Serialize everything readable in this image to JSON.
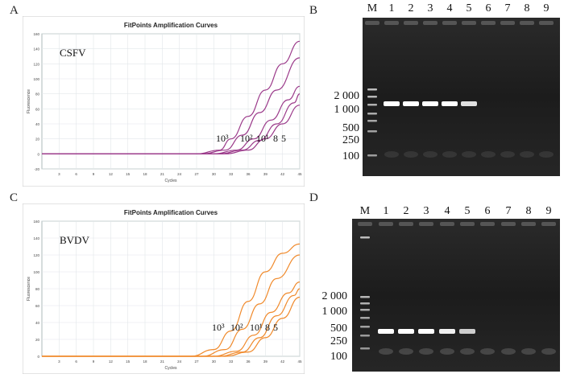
{
  "panels": {
    "A": {
      "letter": "A"
    },
    "B": {
      "letter": "B"
    },
    "C": {
      "letter": "C"
    },
    "D": {
      "letter": "D"
    }
  },
  "chart_data": [
    {
      "type": "line",
      "title": "FitPoints Amplification Curves",
      "xlabel": "Cycles",
      "ylabel": "Fluorescence",
      "virus_label": "CSFV",
      "color": "#9b3a8a",
      "x_ticks": [
        "3",
        "6",
        "9",
        "12",
        "15",
        "18",
        "21",
        "24",
        "27",
        "30",
        "33",
        "36",
        "39",
        "42",
        "45"
      ],
      "y_ticks": [
        "-20",
        "0",
        "20",
        "40",
        "60",
        "80",
        "100",
        "120",
        "140",
        "160"
      ],
      "xlim": [
        0,
        45
      ],
      "ylim": [
        -20,
        160
      ],
      "curve_labels": [
        "10³",
        "10²",
        "10¹",
        "8",
        "5"
      ],
      "series": [
        {
          "values_x": [
            0,
            27,
            31,
            33,
            36,
            39,
            42,
            45
          ],
          "values_y": [
            0,
            0,
            5,
            20,
            50,
            85,
            120,
            150
          ]
        },
        {
          "values_x": [
            0,
            28,
            32,
            35,
            38,
            41,
            45
          ],
          "values_y": [
            0,
            0,
            5,
            25,
            55,
            85,
            128
          ]
        },
        {
          "values_x": [
            0,
            30,
            34,
            37,
            40,
            43,
            45
          ],
          "values_y": [
            0,
            0,
            5,
            20,
            45,
            72,
            90
          ]
        },
        {
          "values_x": [
            0,
            31,
            35,
            38,
            41,
            44,
            45
          ],
          "values_y": [
            0,
            0,
            5,
            18,
            40,
            68,
            80
          ]
        },
        {
          "values_x": [
            0,
            32,
            36,
            39,
            42,
            45
          ],
          "values_y": [
            0,
            0,
            5,
            20,
            40,
            65
          ]
        }
      ]
    },
    {
      "type": "line",
      "title": "FitPoints Amplification Curves",
      "xlabel": "Cycles",
      "ylabel": "Fluorescence",
      "virus_label": "BVDV",
      "color": "#f08a2c",
      "x_ticks": [
        "3",
        "6",
        "9",
        "12",
        "15",
        "18",
        "21",
        "24",
        "27",
        "30",
        "33",
        "36",
        "39",
        "42",
        "45"
      ],
      "y_ticks": [
        "0",
        "20",
        "40",
        "60",
        "80",
        "100",
        "120",
        "140",
        "160"
      ],
      "xlim": [
        0,
        45
      ],
      "ylim": [
        0,
        160
      ],
      "curve_labels": [
        "10³",
        "10²",
        "10¹",
        "8",
        "5"
      ],
      "series": [
        {
          "values_x": [
            0,
            26,
            30,
            33,
            36,
            39,
            42,
            45
          ],
          "values_y": [
            0,
            0,
            8,
            30,
            65,
            100,
            122,
            133
          ]
        },
        {
          "values_x": [
            0,
            28,
            32,
            35,
            38,
            41,
            45
          ],
          "values_y": [
            0,
            0,
            8,
            32,
            62,
            92,
            120
          ]
        },
        {
          "values_x": [
            0,
            30,
            34,
            37,
            40,
            43,
            45
          ],
          "values_y": [
            0,
            0,
            6,
            25,
            52,
            75,
            88
          ]
        },
        {
          "values_x": [
            0,
            31,
            35,
            38,
            41,
            44,
            45
          ],
          "values_y": [
            0,
            0,
            5,
            22,
            48,
            72,
            80
          ]
        },
        {
          "values_x": [
            0,
            32,
            36,
            39,
            42,
            45
          ],
          "values_y": [
            0,
            0,
            5,
            22,
            45,
            70
          ]
        }
      ]
    }
  ],
  "gels": {
    "B": {
      "lane_labels": [
        "M",
        "1",
        "2",
        "3",
        "4",
        "5",
        "6",
        "7",
        "8",
        "9"
      ],
      "marker_labels": [
        "2 000",
        "1 000",
        "500",
        "250",
        "100"
      ],
      "band_lanes": [
        1,
        2,
        3,
        4,
        5
      ],
      "band_strength": [
        1,
        1,
        1,
        1,
        0.7
      ]
    },
    "D": {
      "lane_labels": [
        "M",
        "1",
        "2",
        "3",
        "4",
        "5",
        "6",
        "7",
        "8",
        "9"
      ],
      "marker_labels": [
        "2 000",
        "1 000",
        "500",
        "250",
        "100"
      ],
      "band_lanes": [
        1,
        2,
        3,
        4,
        5
      ],
      "band_strength": [
        1,
        1,
        1,
        0.85,
        0.5
      ]
    }
  }
}
